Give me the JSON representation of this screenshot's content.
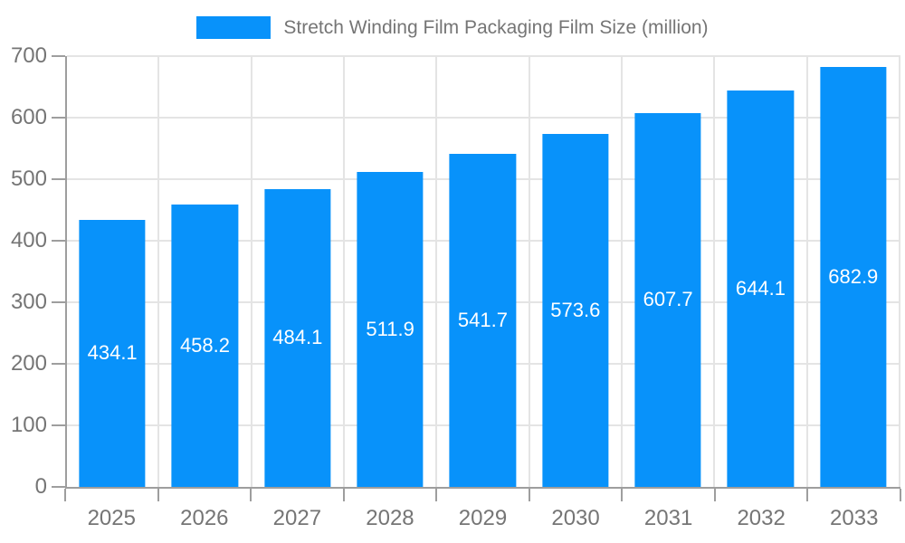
{
  "legend": {
    "label": "Stretch Winding Film Packaging Film Size (million)"
  },
  "colors": {
    "bar": "#0892fa",
    "grid": "#e4e4e4",
    "axis": "#9e9e9e",
    "label_text": "#757575",
    "value_label": "#ffffff",
    "background": "#ffffff"
  },
  "chart_data": {
    "type": "bar",
    "title": "Stretch Winding Film Packaging Film Size (million)",
    "series_name": "Stretch Winding Film Packaging Film Size (million)",
    "categories": [
      "2025",
      "2026",
      "2027",
      "2028",
      "2029",
      "2030",
      "2031",
      "2032",
      "2033"
    ],
    "values": [
      434.1,
      458.2,
      484.1,
      511.9,
      541.7,
      573.6,
      607.7,
      644.1,
      682.9
    ],
    "value_labels": [
      "434.1",
      "458.2",
      "484.1",
      "511.9",
      "541.7",
      "573.6",
      "607.7",
      "644.1",
      "682.9"
    ],
    "xlabel": "",
    "ylabel": "",
    "ylim": [
      0,
      700
    ],
    "yticks": [
      0,
      100,
      200,
      300,
      400,
      500,
      600,
      700
    ],
    "grid": true,
    "legend_position": "top",
    "value_label_position": "center-of-bar"
  }
}
